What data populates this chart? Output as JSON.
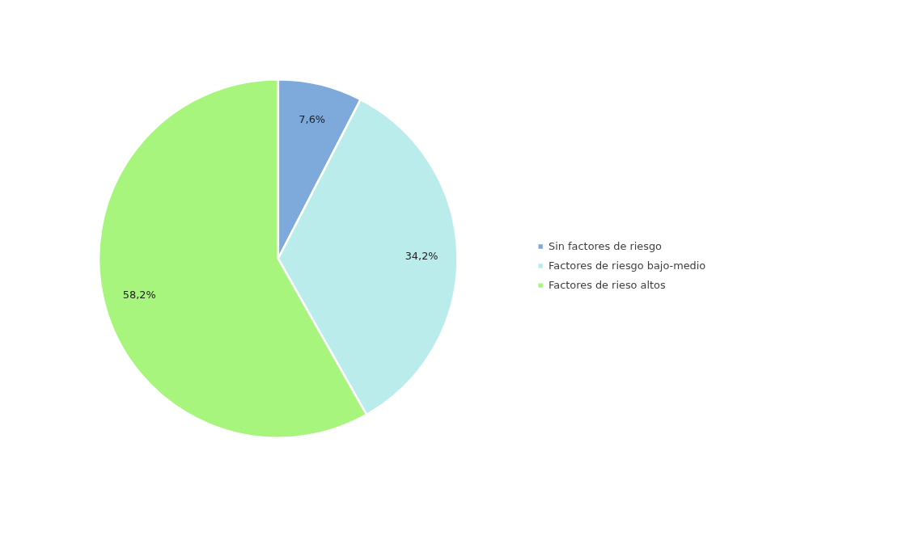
{
  "chart_data": {
    "type": "pie",
    "categories": [
      "Sin factores de riesgo",
      "Factores de riesgo bajo-medio",
      "Factores de rieso altos"
    ],
    "values": [
      7.6,
      34.2,
      58.2
    ],
    "colors": [
      "#7eaadb",
      "#bbecec",
      "#a7f57c"
    ],
    "value_labels": [
      "7,6%",
      "34,2%",
      "58,2%"
    ],
    "legend": "right"
  }
}
